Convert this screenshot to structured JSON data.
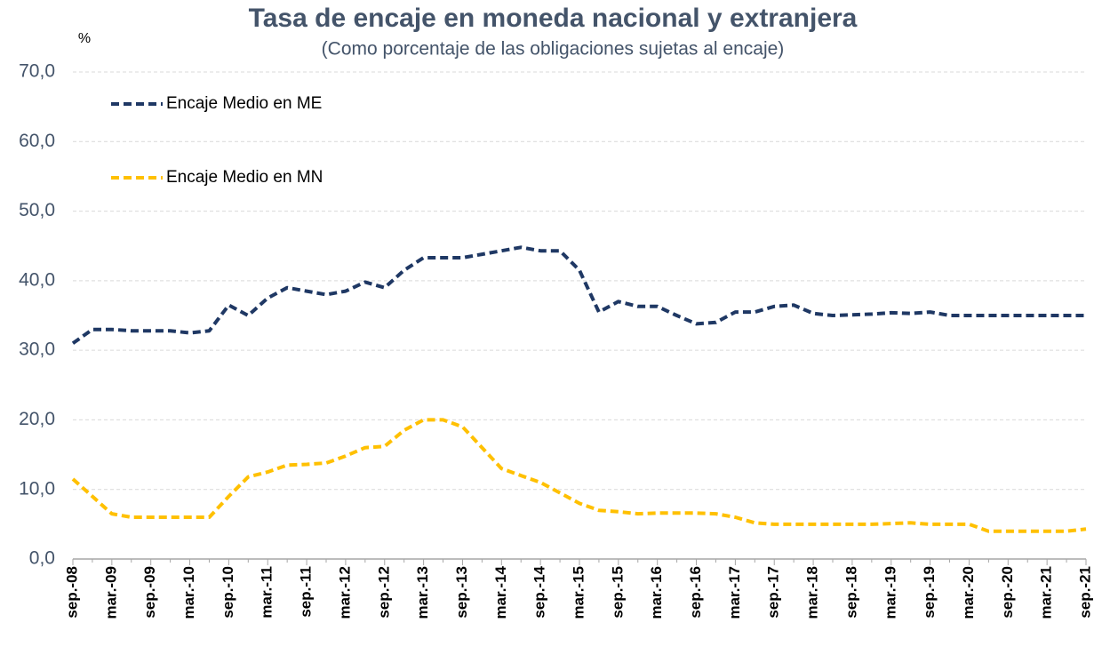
{
  "chart_data": {
    "type": "line",
    "title": "Tasa de encaje en moneda nacional y extranjera",
    "subtitle": "(Como porcentaje de las obligaciones sujetas al encaje)",
    "y_unit_label": "%",
    "categories": [
      "sep.-08",
      null,
      "mar.-09",
      null,
      "sep.-09",
      null,
      "mar.-10",
      null,
      "sep.-10",
      null,
      "mar.-11",
      null,
      "sep.-11",
      null,
      "mar.-12",
      null,
      "sep.-12",
      null,
      "mar.-13",
      null,
      "sep.-13",
      null,
      "mar.-14",
      null,
      "sep.-14",
      null,
      "mar.-15",
      null,
      "sep.-15",
      null,
      "mar.-16",
      null,
      "sep.-16",
      null,
      "mar.-17",
      null,
      "sep.-17",
      null,
      "mar.-18",
      null,
      "sep.-18",
      null,
      "mar.-19",
      null,
      "sep.-19",
      null,
      "mar.-20",
      null,
      "sep.-20",
      null,
      "mar.-21",
      null,
      "sep.-21"
    ],
    "series": [
      {
        "name": "Encaje Medio en ME",
        "color": "#1f3864",
        "values": [
          31,
          33,
          33,
          32.8,
          32.8,
          32.8,
          32.5,
          32.8,
          36.5,
          35,
          37.5,
          39,
          38.5,
          38,
          38.5,
          39.8,
          39,
          41.5,
          43.3,
          43.3,
          43.3,
          43.8,
          44.3,
          44.8,
          44.3,
          44.3,
          41.5,
          35.5,
          37,
          36.3,
          36.3,
          35,
          33.8,
          34,
          35.5,
          35.5,
          36.3,
          36.5,
          35.3,
          35,
          35.1,
          35.2,
          35.4,
          35.3,
          35.5,
          35,
          35,
          35,
          35,
          35,
          35,
          35,
          35
        ]
      },
      {
        "name": "Encaje Medio en MN",
        "color": "#ffc000",
        "values": [
          11.5,
          9,
          6.5,
          6,
          6,
          6,
          6,
          6,
          9,
          11.8,
          12.5,
          13.5,
          13.6,
          13.8,
          14.8,
          16,
          16.2,
          18.5,
          20,
          20,
          19,
          16,
          13,
          12,
          11,
          9.5,
          8,
          7,
          6.8,
          6.5,
          6.6,
          6.6,
          6.6,
          6.5,
          6,
          5.2,
          5,
          5,
          5,
          5,
          5,
          5,
          5.1,
          5.2,
          5,
          5,
          5,
          4,
          4,
          4,
          4,
          4,
          4.3
        ]
      }
    ],
    "ylim": [
      0,
      70
    ],
    "yticks": [
      {
        "value": 0,
        "label": "0,0"
      },
      {
        "value": 10,
        "label": "10,0"
      },
      {
        "value": 20,
        "label": "20,0"
      },
      {
        "value": 30,
        "label": "30,0"
      },
      {
        "value": 40,
        "label": "40,0"
      },
      {
        "value": 50,
        "label": "50,0"
      },
      {
        "value": 60,
        "label": "60,0"
      },
      {
        "value": 70,
        "label": "70,0"
      }
    ],
    "grid": true,
    "legend": "upper-left"
  }
}
